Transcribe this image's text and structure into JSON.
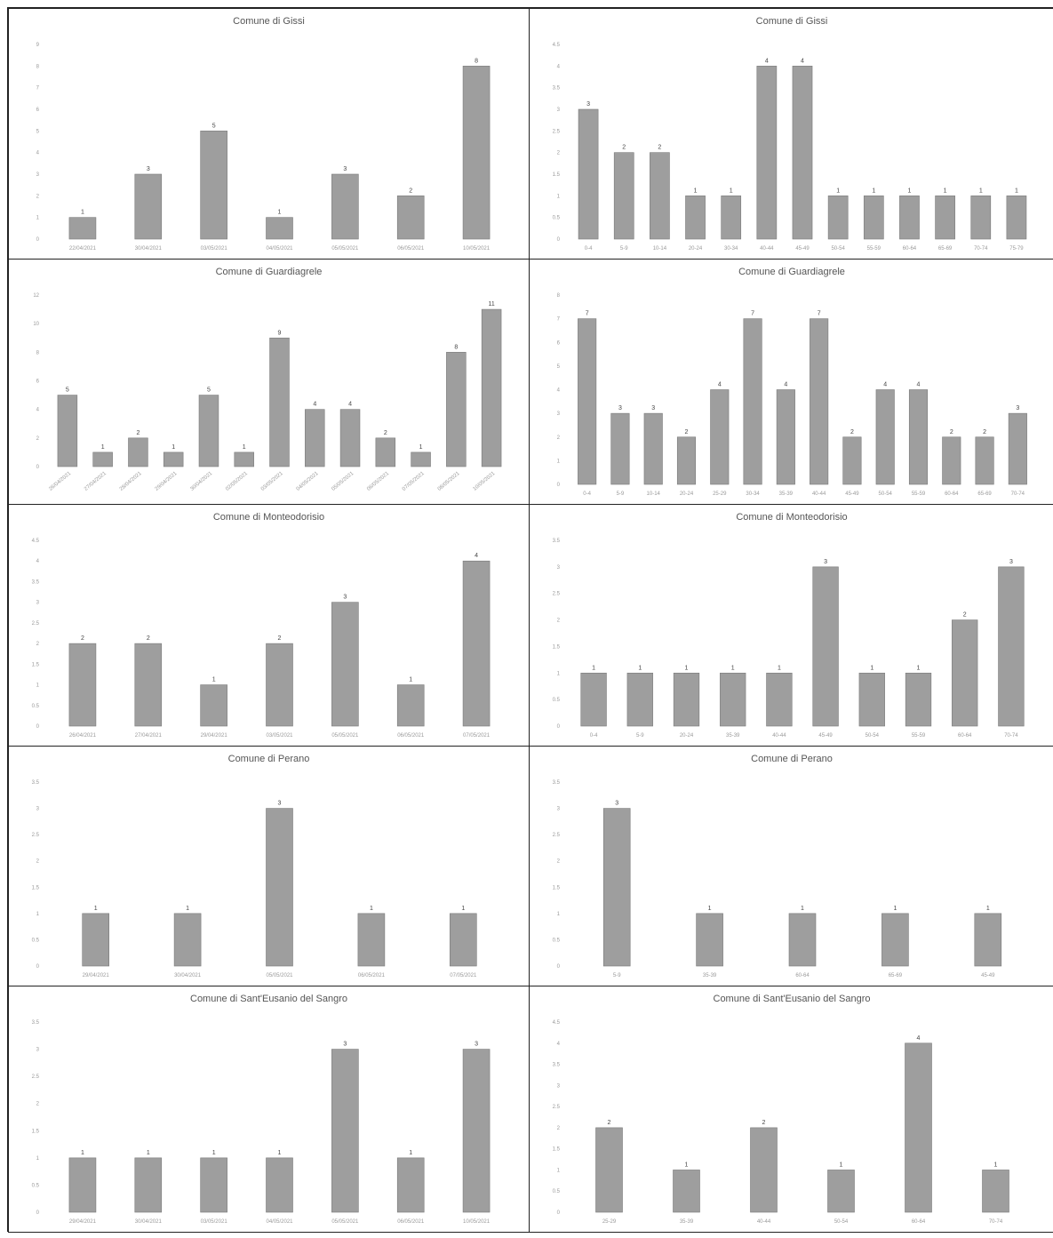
{
  "chart_data": [
    {
      "id": "gissi-dates",
      "type": "bar",
      "title": "Comune di Gissi",
      "categories": [
        "22/04/2021",
        "30/04/2021",
        "03/05/2021",
        "04/05/2021",
        "05/05/2021",
        "06/05/2021",
        "10/05/2021"
      ],
      "values": [
        1,
        3,
        5,
        1,
        3,
        2,
        8
      ],
      "ylim": [
        0,
        9
      ],
      "ytick_step": 1,
      "rotate_x": false
    },
    {
      "id": "gissi-ages",
      "type": "bar",
      "title": "Comune di Gissi",
      "categories": [
        "0-4",
        "5-9",
        "10-14",
        "20-24",
        "30-34",
        "40-44",
        "45-49",
        "50-54",
        "55-59",
        "60-64",
        "65-69",
        "70-74",
        "75-79"
      ],
      "values": [
        3,
        2,
        2,
        1,
        1,
        4,
        4,
        1,
        1,
        1,
        1,
        1,
        1
      ],
      "ylim": [
        0,
        4.5
      ],
      "ytick_step": 0.5,
      "rotate_x": false
    },
    {
      "id": "guardiagrele-dates",
      "type": "bar",
      "title": "Comune di Guardiagrele",
      "categories": [
        "26/04/2021",
        "27/04/2021",
        "28/04/2021",
        "29/04/2021",
        "30/04/2021",
        "02/05/2021",
        "03/05/2021",
        "04/05/2021",
        "05/05/2021",
        "06/05/2021",
        "07/05/2021",
        "08/05/2021",
        "10/05/2021"
      ],
      "values": [
        5,
        1,
        2,
        1,
        5,
        1,
        9,
        4,
        4,
        2,
        1,
        8,
        11
      ],
      "ylim": [
        0,
        12
      ],
      "ytick_step": 2,
      "rotate_x": true
    },
    {
      "id": "guardiagrele-ages",
      "type": "bar",
      "title": "Comune di Guardiagrele",
      "categories": [
        "0-4",
        "5-9",
        "10-14",
        "20-24",
        "25-29",
        "30-34",
        "35-39",
        "40-44",
        "45-49",
        "50-54",
        "55-59",
        "60-64",
        "65-69",
        "70-74"
      ],
      "values": [
        7,
        3,
        3,
        2,
        4,
        7,
        4,
        7,
        2,
        4,
        4,
        2,
        2,
        3
      ],
      "ylim": [
        0,
        8
      ],
      "ytick_step": 1,
      "rotate_x": false
    },
    {
      "id": "monteodorisio-dates",
      "type": "bar",
      "title": "Comune di Monteodorisio",
      "categories": [
        "26/04/2021",
        "27/04/2021",
        "29/04/2021",
        "03/05/2021",
        "05/05/2021",
        "06/05/2021",
        "07/05/2021"
      ],
      "values": [
        2,
        2,
        1,
        2,
        3,
        1,
        4
      ],
      "ylim": [
        0,
        4.5
      ],
      "ytick_step": 0.5,
      "rotate_x": false
    },
    {
      "id": "monteodorisio-ages",
      "type": "bar",
      "title": "Comune di Monteodorisio",
      "categories": [
        "0-4",
        "5-9",
        "20-24",
        "35-39",
        "40-44",
        "45-49",
        "50-54",
        "55-59",
        "60-64",
        "70-74"
      ],
      "values": [
        1,
        1,
        1,
        1,
        1,
        3,
        1,
        1,
        2,
        3
      ],
      "ylim": [
        0,
        3.5
      ],
      "ytick_step": 0.5,
      "rotate_x": false
    },
    {
      "id": "perano-dates",
      "type": "bar",
      "title": "Comune di Perano",
      "categories": [
        "29/04/2021",
        "30/04/2021",
        "05/05/2021",
        "06/05/2021",
        "07/05/2021"
      ],
      "values": [
        1,
        1,
        3,
        1,
        1
      ],
      "ylim": [
        0,
        3.5
      ],
      "ytick_step": 0.5,
      "rotate_x": false
    },
    {
      "id": "perano-ages",
      "type": "bar",
      "title": "Comune di Perano",
      "categories": [
        "5-9",
        "35-39",
        "60-64",
        "65-69",
        "45-49"
      ],
      "values": [
        3,
        1,
        1,
        1,
        1
      ],
      "ylim": [
        0,
        3.5
      ],
      "ytick_step": 0.5,
      "rotate_x": false
    },
    {
      "id": "santeusanio-dates",
      "type": "bar",
      "title": "Comune di Sant'Eusanio del Sangro",
      "categories": [
        "29/04/2021",
        "30/04/2021",
        "03/05/2021",
        "04/05/2021",
        "05/05/2021",
        "06/05/2021",
        "10/05/2021"
      ],
      "values": [
        1,
        1,
        1,
        1,
        3,
        1,
        3
      ],
      "ylim": [
        0,
        3.5
      ],
      "ytick_step": 0.5,
      "rotate_x": false
    },
    {
      "id": "santeusanio-ages",
      "type": "bar",
      "title": "Comune di Sant'Eusanio del Sangro",
      "categories": [
        "25-29",
        "35-39",
        "40-44",
        "50-54",
        "60-64",
        "70-74"
      ],
      "values": [
        2,
        1,
        2,
        1,
        4,
        1
      ],
      "ylim": [
        0,
        4.5
      ],
      "ytick_step": 0.5,
      "rotate_x": false
    }
  ]
}
